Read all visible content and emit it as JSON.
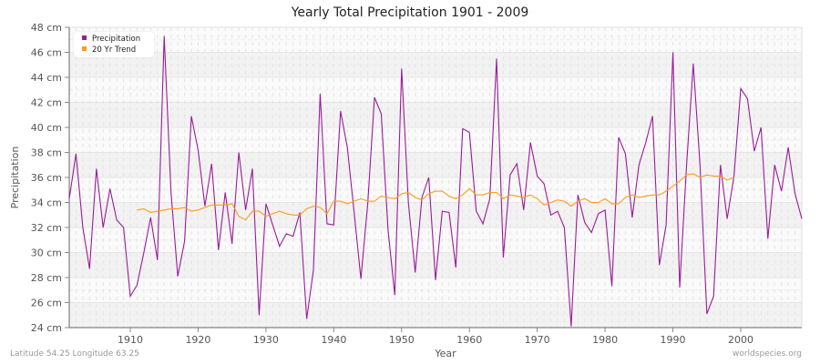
{
  "title": "Yearly Total Precipitation 1901 - 2009",
  "footer": {
    "location": "Latitude 54.25 Longitude 63.25",
    "source": "worldspecies.org"
  },
  "legend": {
    "precipitation_label": "Precipitation",
    "trend_label": "20 Yr Trend"
  },
  "colors": {
    "precipitation": "#9b1a9b",
    "trend": "#ff9a1a",
    "band_dark": "#f2f2f2",
    "band_light": "#fafafa"
  },
  "chart_data": {
    "type": "line",
    "title": "Yearly Total Precipitation 1901 - 2009",
    "xlabel": "Year",
    "ylabel": "Precipitation",
    "ylim": [
      24,
      48
    ],
    "xlim": [
      1901,
      2009
    ],
    "y_ticks": [
      "24 cm",
      "26 cm",
      "28 cm",
      "30 cm",
      "32 cm",
      "34 cm",
      "36 cm",
      "38 cm",
      "40 cm",
      "42 cm",
      "44 cm",
      "46 cm",
      "48 cm"
    ],
    "x_ticks": [
      "1910",
      "1920",
      "1930",
      "1940",
      "1950",
      "1960",
      "1970",
      "1980",
      "1990",
      "2000"
    ],
    "grid": true,
    "legend_position": "top-left",
    "series": [
      {
        "name": "Precipitation",
        "start_year": 1901,
        "values": [
          34.3,
          37.9,
          32.0,
          28.7,
          36.7,
          32.0,
          35.1,
          32.6,
          32.0,
          26.5,
          27.4,
          30.0,
          32.8,
          29.4,
          47.3,
          34.8,
          28.1,
          30.9,
          40.9,
          38.2,
          33.7,
          37.1,
          30.2,
          34.8,
          30.7,
          38.0,
          33.4,
          36.7,
          25.0,
          33.9,
          32.2,
          30.5,
          31.5,
          31.3,
          33.2,
          24.7,
          28.6,
          42.7,
          32.3,
          32.2,
          41.3,
          38.4,
          33.2,
          27.9,
          33.9,
          42.4,
          41.1,
          31.8,
          26.6,
          44.7,
          34.0,
          28.4,
          34.4,
          36.0,
          27.8,
          33.3,
          33.2,
          28.8,
          39.9,
          39.6,
          33.3,
          32.3,
          34.3,
          45.5,
          29.6,
          36.2,
          37.1,
          33.4,
          38.8,
          36.1,
          35.5,
          33.0,
          33.3,
          32.0,
          24.1,
          34.6,
          32.4,
          31.6,
          33.1,
          33.4,
          27.3,
          39.2,
          37.9,
          32.8,
          37.0,
          38.8,
          40.9,
          29.0,
          32.2,
          46.0,
          27.2,
          36.8,
          45.1,
          37.0,
          25.1,
          26.5,
          37.0,
          32.7,
          36.1,
          43.1,
          42.3,
          38.1,
          40.0,
          31.1,
          37.0,
          34.9,
          38.4,
          34.7,
          32.7
        ]
      },
      {
        "name": "20 Yr Trend",
        "start_year": 1911,
        "values": [
          33.4,
          33.5,
          33.2,
          33.3,
          33.4,
          33.5,
          33.5,
          33.6,
          33.3,
          33.4,
          33.6,
          33.8,
          33.8,
          33.8,
          33.9,
          32.9,
          32.6,
          33.3,
          33.3,
          32.9,
          33.1,
          33.3,
          33.1,
          33.0,
          33.0,
          33.5,
          33.7,
          33.6,
          33.1,
          34.1,
          34.1,
          33.9,
          34.1,
          34.3,
          34.1,
          34.1,
          34.5,
          34.4,
          34.3,
          34.7,
          34.8,
          34.4,
          34.2,
          34.7,
          34.9,
          34.9,
          34.5,
          34.3,
          34.6,
          35.1,
          34.6,
          34.6,
          34.8,
          34.8,
          34.3,
          34.6,
          34.5,
          34.4,
          34.6,
          34.3,
          33.8,
          34.0,
          34.2,
          34.1,
          33.7,
          34.1,
          34.3,
          34.0,
          34.0,
          34.3,
          33.9,
          33.9,
          34.4,
          34.6,
          34.4,
          34.5,
          34.6,
          34.6,
          34.9,
          35.3,
          35.7,
          36.2,
          36.3,
          36.0,
          36.2,
          36.1,
          36.1,
          35.8,
          36.0
        ]
      }
    ]
  }
}
